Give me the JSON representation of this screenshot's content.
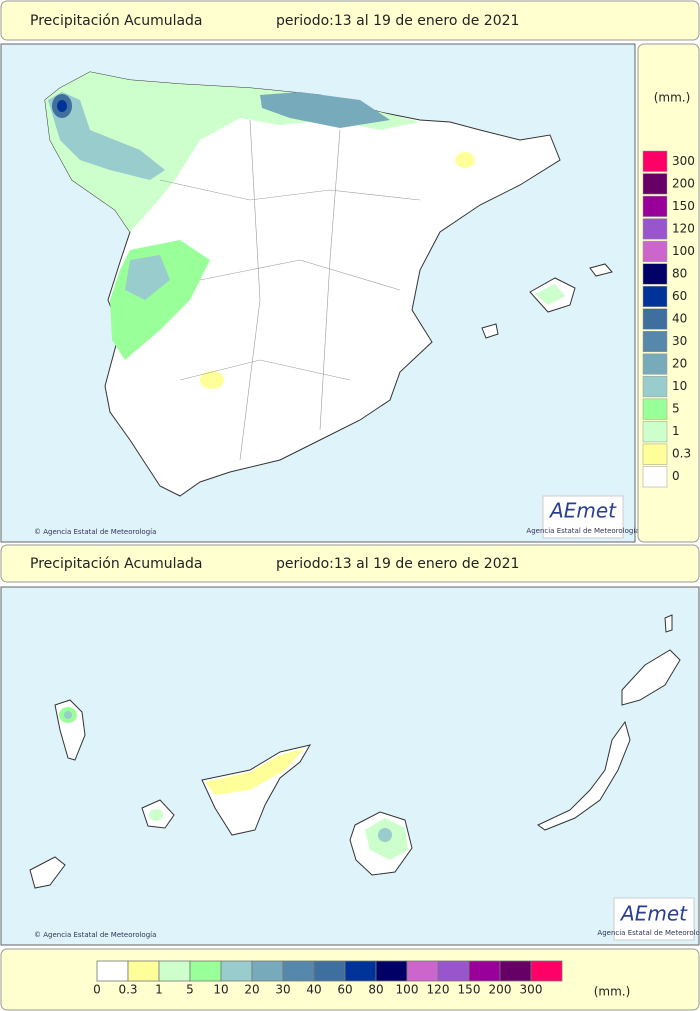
{
  "panels": [
    {
      "title": "Precipitación Acumulada",
      "period": "periodo:13 al 19 de enero de 2021",
      "credit": "© Agencia Estatal de Meteorología",
      "logo": "AEmet",
      "logo_caption": "Agencia Estatal de Meteorología"
    },
    {
      "title": "Precipitación Acumulada",
      "period": "periodo:13 al 19 de enero de 2021",
      "credit": "© Agencia Estatal de Meteorología",
      "logo": "AEmet",
      "logo_caption": "Agencia Estatal de Meteorología"
    }
  ],
  "legend": {
    "unit": "(mm.)",
    "classes": [
      {
        "value": 0,
        "color": "#ffffff"
      },
      {
        "value": 0.3,
        "color": "#ffff99"
      },
      {
        "value": 1,
        "color": "#ccffcc"
      },
      {
        "value": 5,
        "color": "#99ff99"
      },
      {
        "value": 10,
        "color": "#99cccc"
      },
      {
        "value": 20,
        "color": "#77aabb"
      },
      {
        "value": 30,
        "color": "#5588aa"
      },
      {
        "value": 40,
        "color": "#3f6f9f"
      },
      {
        "value": 60,
        "color": "#003399"
      },
      {
        "value": 80,
        "color": "#000066"
      },
      {
        "value": 100,
        "color": "#cc66cc"
      },
      {
        "value": 120,
        "color": "#9955cc"
      },
      {
        "value": 150,
        "color": "#990099"
      },
      {
        "value": 200,
        "color": "#660066"
      },
      {
        "value": 300,
        "color": "#ff0066"
      }
    ]
  }
}
